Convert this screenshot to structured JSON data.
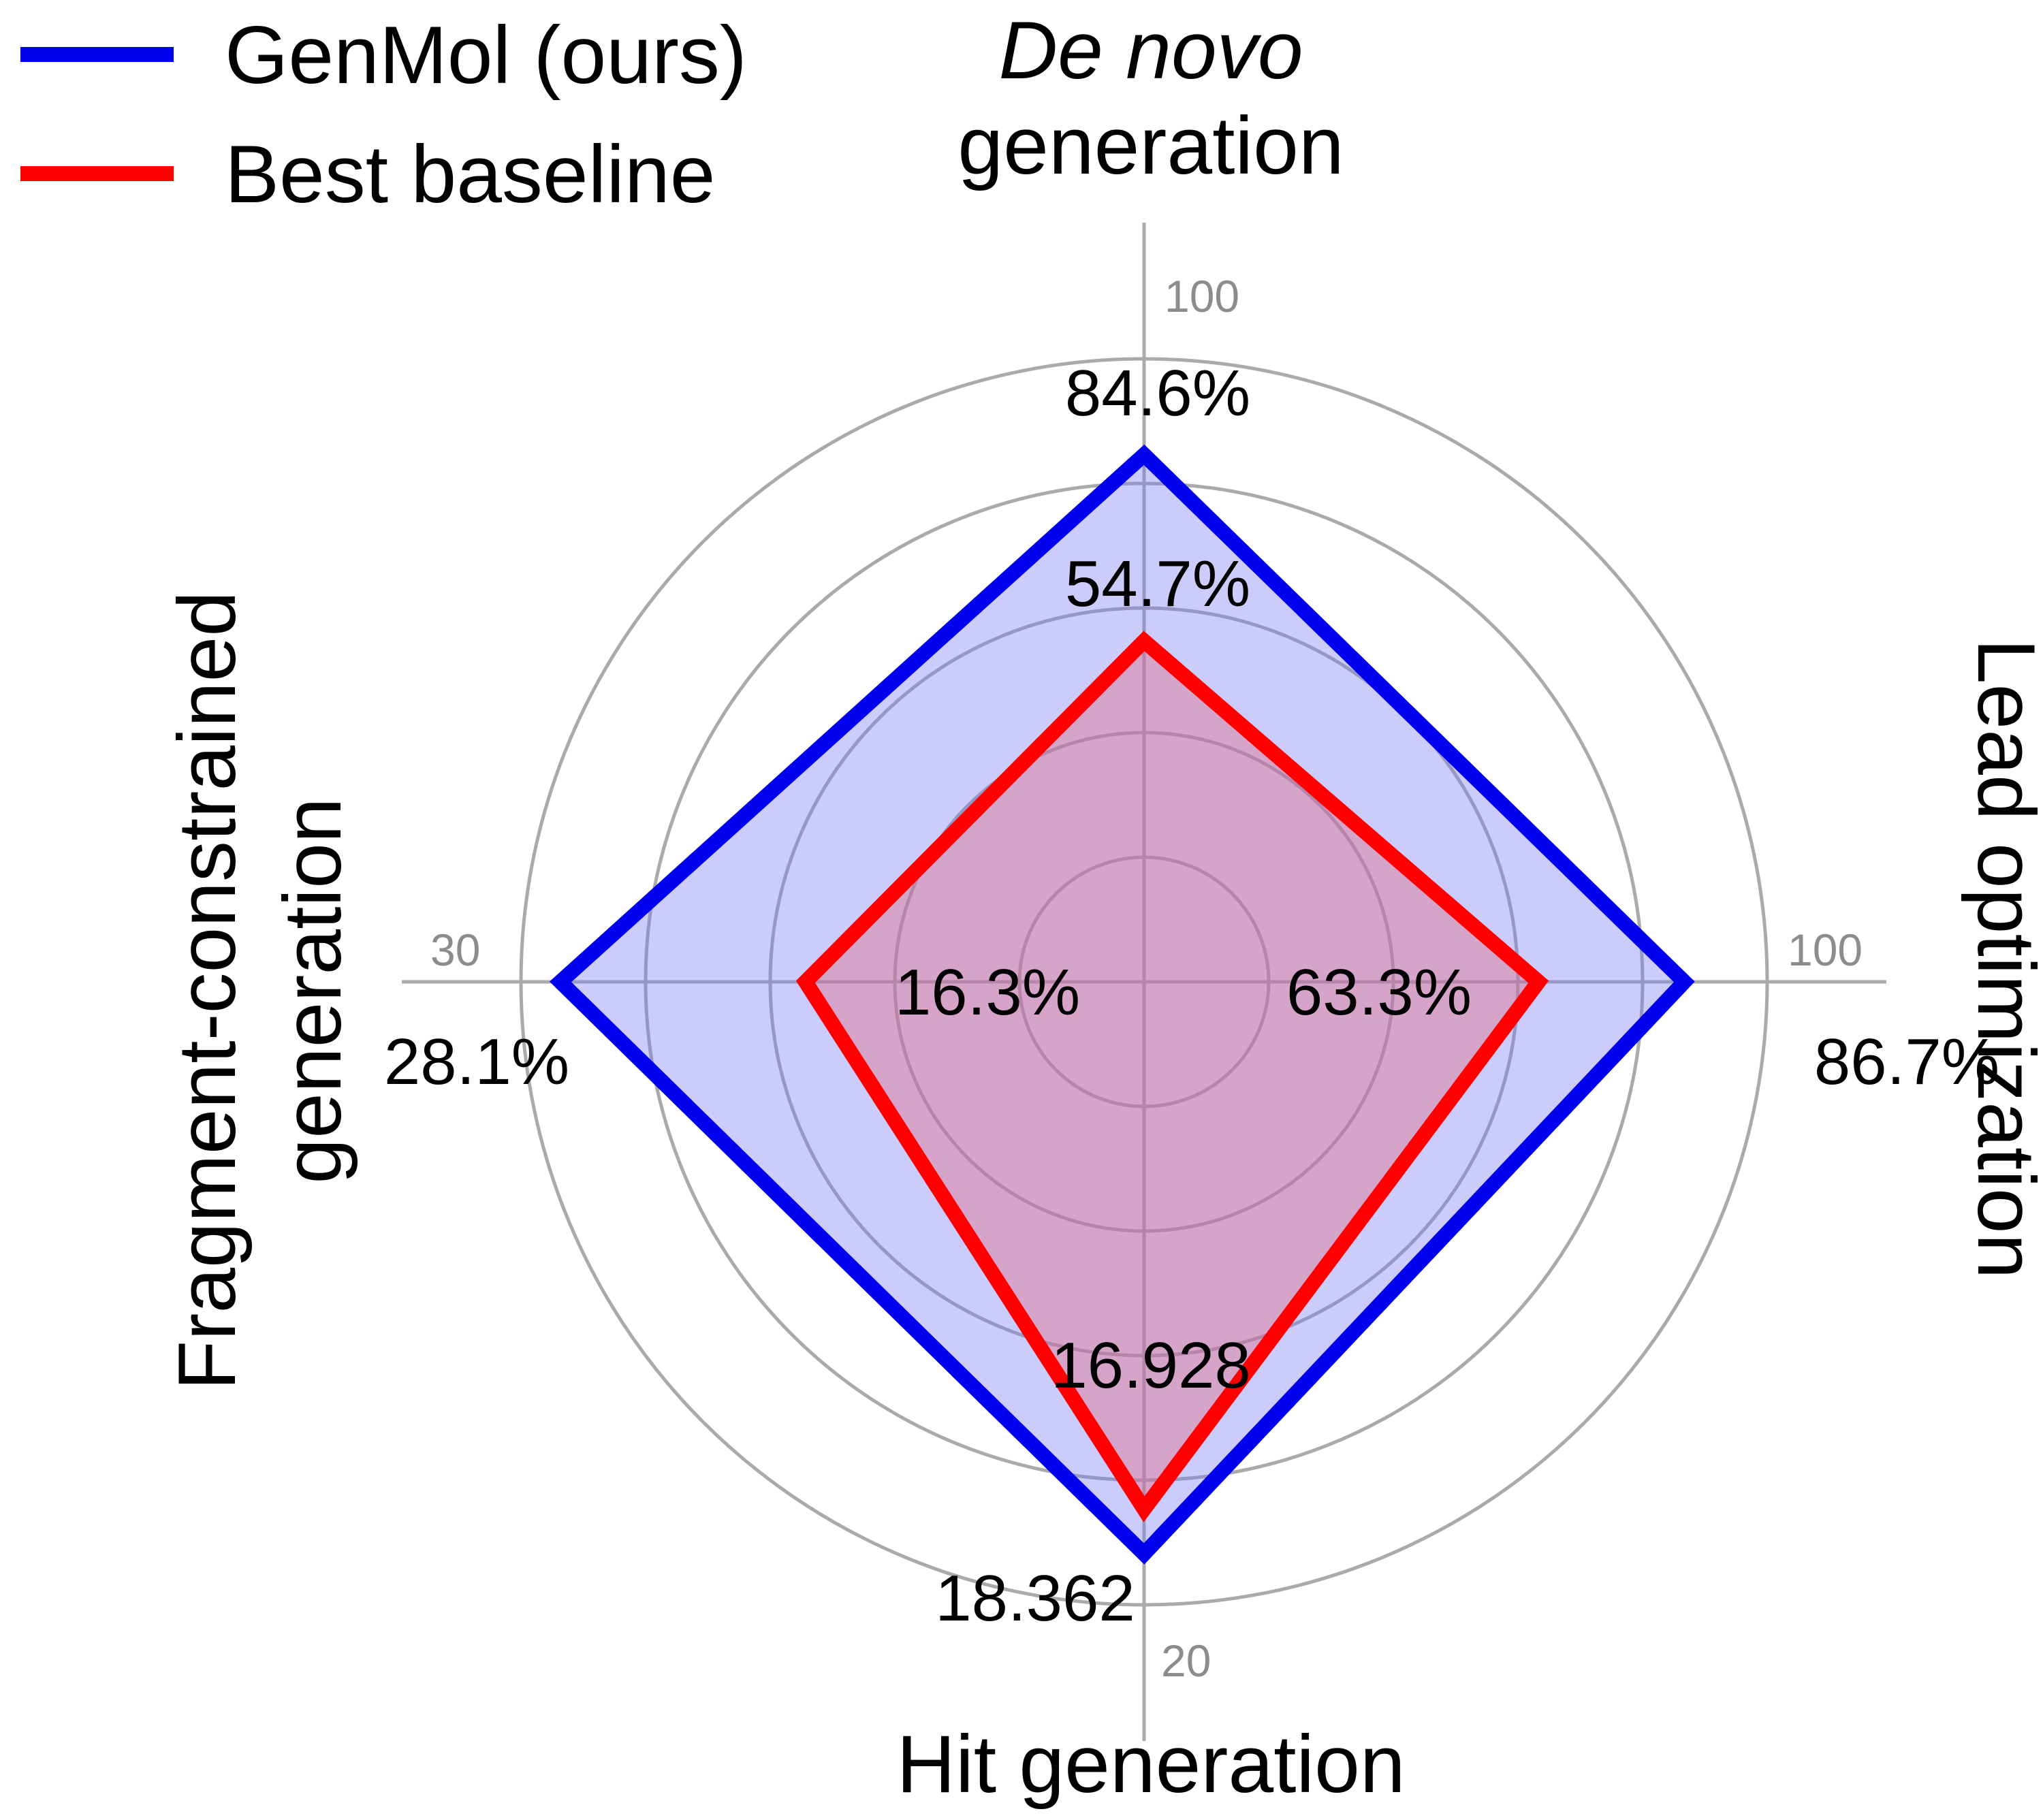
{
  "chart_data": {
    "type": "radar",
    "axes": [
      {
        "title_italic": "De novo",
        "title": "generation",
        "max_tick": "100",
        "series_values": {
          "GenMol (ours)": 84.6,
          "Best baseline": 54.7
        },
        "value_labels": [
          "84.6%",
          "54.7%"
        ],
        "range": [
          0,
          100
        ]
      },
      {
        "title": "Lead optimization",
        "max_tick": "100",
        "series_values": {
          "GenMol (ours)": 86.7,
          "Best baseline": 63.3
        },
        "value_labels": [
          "86.7%",
          "63.3%"
        ],
        "range": [
          0,
          100
        ]
      },
      {
        "title": "Hit generation",
        "max_tick": "20",
        "series_values": {
          "GenMol (ours)": 18.362,
          "Best baseline": 16.928
        },
        "value_labels": [
          "18.362",
          "16.928"
        ],
        "range": [
          0,
          20
        ]
      },
      {
        "title_lines": [
          "Fragment-constrained",
          "generation"
        ],
        "max_tick": "30",
        "series_values": {
          "GenMol (ours)": 28.1,
          "Best baseline": 16.3
        },
        "value_labels": [
          "28.1%",
          "16.3%"
        ],
        "range": [
          0,
          30
        ]
      }
    ],
    "series": [
      {
        "name": "GenMol (ours)",
        "color": "#0000ee",
        "fill": "rgba(120,120,245,0.38)"
      },
      {
        "name": "Best baseline",
        "color": "#ff0000",
        "fill": "rgba(230,110,130,0.42)"
      }
    ],
    "gridlines": "concentric circles",
    "legend_position": "top-left"
  }
}
